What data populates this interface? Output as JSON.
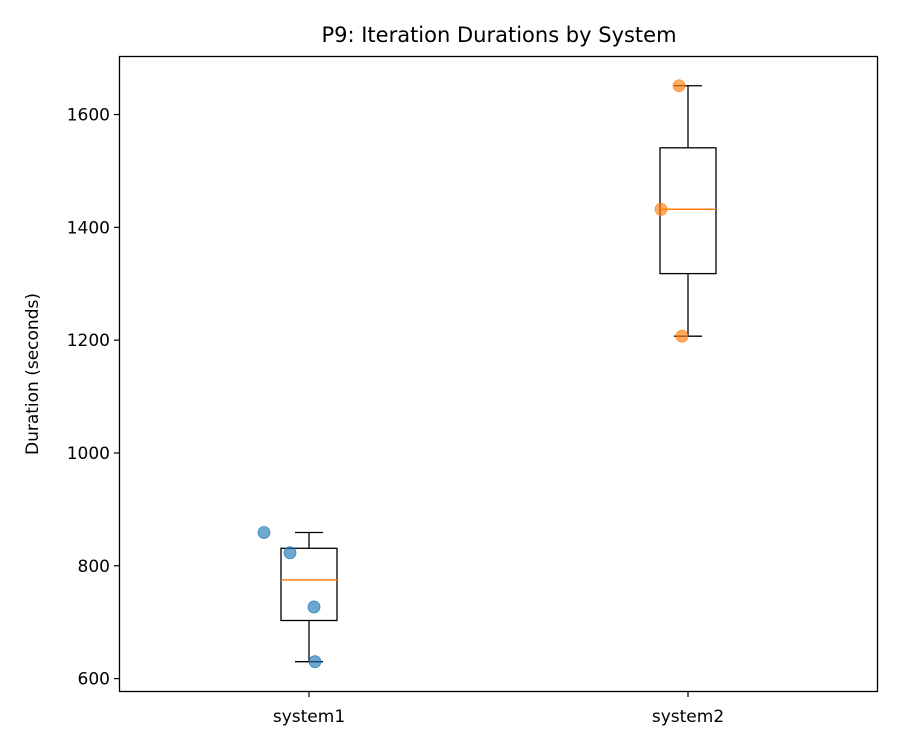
{
  "chart_data": {
    "type": "box",
    "title": "P9: Iteration Durations by System",
    "xlabel": "",
    "ylabel": "Duration (seconds)",
    "categories": [
      "system1",
      "system2"
    ],
    "ylim": [
      578,
      1702
    ],
    "yticks": [
      600,
      800,
      1000,
      1200,
      1400,
      1600
    ],
    "grid": false,
    "boxes": [
      {
        "category": "system1",
        "whisker_low": 630,
        "q1": 703,
        "median": 775,
        "q3": 831,
        "whisker_high": 859,
        "points": [
          859,
          823,
          727,
          630
        ]
      },
      {
        "category": "system2",
        "whisker_low": 1207,
        "q1": 1318,
        "median": 1432,
        "q3": 1541,
        "whisker_high": 1651,
        "points": [
          1651,
          1432,
          1207
        ]
      }
    ],
    "colors": {
      "system1_points": "#1f77b4",
      "system2_points": "#ff7f0e",
      "median_line": "#ff7f0e",
      "box_stroke": "#000000"
    }
  }
}
